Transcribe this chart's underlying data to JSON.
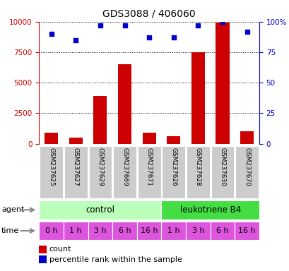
{
  "title": "GDS3088 / 406060",
  "samples": [
    "GSM237625",
    "GSM237627",
    "GSM237629",
    "GSM237669",
    "GSM237671",
    "GSM237626",
    "GSM237628",
    "GSM237630",
    "GSM237670"
  ],
  "bar_values": [
    900,
    500,
    3900,
    6500,
    900,
    600,
    7500,
    9900,
    1000
  ],
  "dot_values_scaled": [
    9000,
    8500,
    9700,
    9700,
    8700,
    8700,
    9700,
    10000,
    9200
  ],
  "bar_color": "#cc0000",
  "dot_color": "#0000cc",
  "ylim_left": [
    0,
    10000
  ],
  "yticks_left": [
    0,
    2500,
    5000,
    7500,
    10000
  ],
  "ytick_labels_left": [
    "0",
    "2500",
    "5000",
    "7500",
    "10000"
  ],
  "ytick_labels_right": [
    "0",
    "25",
    "50",
    "75",
    "100%"
  ],
  "sample_box_color": "#cccccc",
  "agent_control_color": "#bbffbb",
  "agent_leukotriene_color": "#44dd44",
  "time_bg_color": "#dd55dd",
  "time_labels": [
    "0 h",
    "1 h",
    "3 h",
    "6 h",
    "16 h",
    "1 h",
    "3 h",
    "6 h",
    "16 h"
  ],
  "agent_label": "agent",
  "time_label": "time",
  "legend_count_label": "count",
  "legend_dot_label": "percentile rank within the sample",
  "arrow_color": "#888888"
}
